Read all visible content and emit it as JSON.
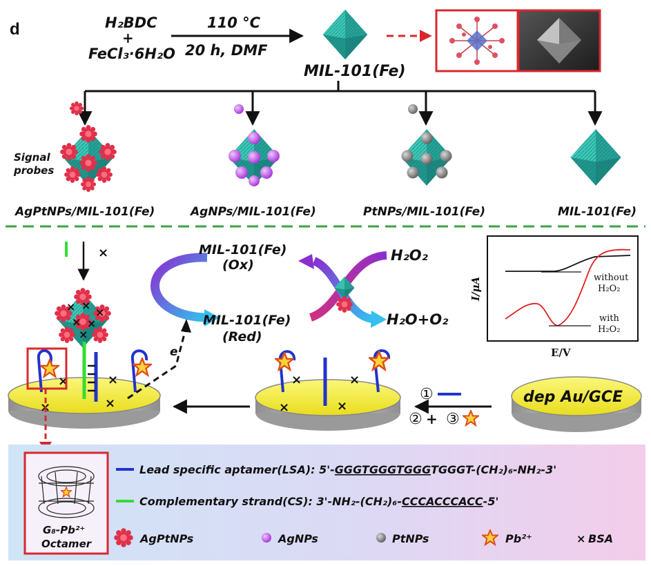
{
  "panel_letter": "d",
  "synthesis": {
    "reactant_1": "H₂BDC",
    "plus": "+",
    "reactant_2": "FeCl₃·6H₂O",
    "condition_temp": "110 °C",
    "condition_time": "20 h, DMF",
    "product": "MIL-101(Fe)"
  },
  "probes": {
    "signal_label_line1": "Signal",
    "signal_label_line2": "probes",
    "items": [
      {
        "label": "AgPtNPs/MIL-101(Fe)"
      },
      {
        "label": "AgNPs/MIL-101(Fe)"
      },
      {
        "label": "PtNPs/MIL-101(Fe)"
      },
      {
        "label": "MIL-101(Fe)"
      }
    ]
  },
  "cycle": {
    "ox_line1": "MIL-101(Fe)",
    "ox_line2": "(Ox)",
    "red_line1": "MIL-101(Fe)",
    "red_line2": "(Red)",
    "reactant": "H₂O₂",
    "products": "H₂O+O₂",
    "electron": "e",
    "bsa_mark": "×"
  },
  "plot": {
    "ylabel": "I/μA",
    "xlabel": "E/V",
    "curve1_line1": "without",
    "curve1_line2": "H₂O₂",
    "curve2_line1": "with",
    "curve2_line2": "H₂O₂"
  },
  "electrode": {
    "label": "dep Au/GCE",
    "step1": "①",
    "step2": "②",
    "step3": "③",
    "plus": "+"
  },
  "legend": {
    "lsa_prefix": "Lead specific aptamer(LSA): 5'-",
    "lsa_underlined": "GGGTGGGTGGG",
    "lsa_rest": "TGGGT-(CH₂)₆-NH₂-3'",
    "cs_prefix": "Complementary strand(CS): 3'-NH₂-(CH₂)₆-",
    "cs_underlined": "CCCACCCACC",
    "cs_rest": "-5'",
    "octamer_line1": "G₈-Pb²⁺",
    "octamer_line2": "Octamer",
    "items": [
      {
        "label": "AgPtNPs"
      },
      {
        "label": "AgNPs"
      },
      {
        "label": "PtNPs"
      },
      {
        "label": "Pb²⁺"
      },
      {
        "label": "BSA"
      }
    ],
    "bsa_symbol": "×"
  },
  "colors": {
    "teal": "#2fb5aa",
    "red_np": "#e0304a",
    "ag": "#c24fe0",
    "pt": "#808080",
    "frame_red": "#d8282e",
    "dash_green": "#3aa345",
    "lsa_blue": "#2233cc",
    "cs_green": "#33dd33",
    "disc_yellow": "#f2ec38"
  }
}
